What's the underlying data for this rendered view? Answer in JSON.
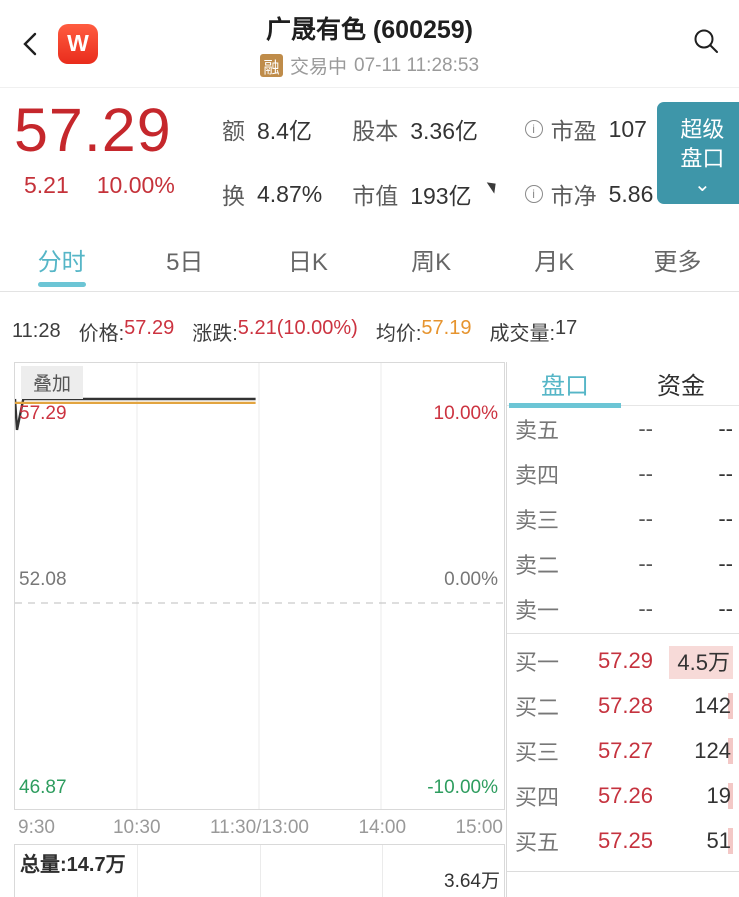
{
  "header": {
    "title": "广晟有色 (600259)",
    "margin_badge": "融",
    "status": "交易中",
    "datetime": "07-11 11:28:53",
    "app_badge": "W"
  },
  "quote": {
    "price": "57.29",
    "change": "5.21",
    "change_pct": "10.00%",
    "stats": [
      {
        "label": "额",
        "value": "8.4亿"
      },
      {
        "label": "股本",
        "value": "3.36亿"
      },
      {
        "label": "市盈",
        "value": "107"
      },
      {
        "label": "换",
        "value": "4.87%"
      },
      {
        "label": "市值",
        "value": "193亿"
      },
      {
        "label": "市净",
        "value": "5.86"
      }
    ],
    "super_button": {
      "line1": "超级",
      "line2": "盘口"
    }
  },
  "period_tabs": [
    {
      "label": "分时",
      "active": true
    },
    {
      "label": "5日"
    },
    {
      "label": "日K"
    },
    {
      "label": "周K"
    },
    {
      "label": "月K"
    },
    {
      "label": "更多"
    }
  ],
  "ticker": {
    "time": "11:28",
    "price_label": "价格:",
    "price": "57.29",
    "change_label": "涨跌:",
    "change": "5.21(10.00%)",
    "avg_label": "均价:",
    "avg": "57.19",
    "vol_label": "成交量:",
    "vol": "17"
  },
  "chart_data": {
    "type": "line",
    "overlay_button_label": "叠加",
    "x_ticks": [
      "9:30",
      "10:30",
      "11:30/13:00",
      "14:00",
      "15:00"
    ],
    "y_axis_left": [
      "57.29",
      "52.08",
      "46.87"
    ],
    "y_axis_right": [
      "10.00%",
      "0.00%",
      "-10.00%"
    ],
    "limit_up": 57.29,
    "prev_close": 52.08,
    "limit_down": 46.87,
    "legend_position": "none",
    "grid": true,
    "series": [
      {
        "name": "price",
        "color": "#333333",
        "points": [
          [
            0,
            57.29
          ],
          [
            0.004,
            56.5
          ],
          [
            0.017,
            57.29
          ],
          [
            0.492,
            57.29
          ]
        ]
      },
      {
        "name": "avg-price",
        "color": "#e2a43f",
        "points": [
          [
            0,
            57.19
          ],
          [
            0.492,
            57.19
          ]
        ]
      }
    ],
    "volume_total_label": "总量:14.7万",
    "volume_scale_label": "3.64万"
  },
  "panel": {
    "tabs": [
      {
        "label": "盘口",
        "active": true
      },
      {
        "label": "资金"
      }
    ],
    "asks": [
      {
        "label": "卖五",
        "price": "--",
        "vol": "--"
      },
      {
        "label": "卖四",
        "price": "--",
        "vol": "--"
      },
      {
        "label": "卖三",
        "price": "--",
        "vol": "--"
      },
      {
        "label": "卖二",
        "price": "--",
        "vol": "--"
      },
      {
        "label": "卖一",
        "price": "--",
        "vol": "--"
      }
    ],
    "bids": [
      {
        "label": "买一",
        "price": "57.29",
        "vol": "4.5万",
        "highlight": true
      },
      {
        "label": "买二",
        "price": "57.28",
        "vol": "142"
      },
      {
        "label": "买三",
        "price": "57.27",
        "vol": "124"
      },
      {
        "label": "买四",
        "price": "57.26",
        "vol": "19"
      },
      {
        "label": "买五",
        "price": "57.25",
        "vol": "51"
      }
    ]
  },
  "colors": {
    "up_red": "#c5323e",
    "down_green": "#2e9d5f",
    "avg_orange": "#e2a43f",
    "accent_teal": "#56b6c7",
    "button_teal": "#3e96a9"
  }
}
